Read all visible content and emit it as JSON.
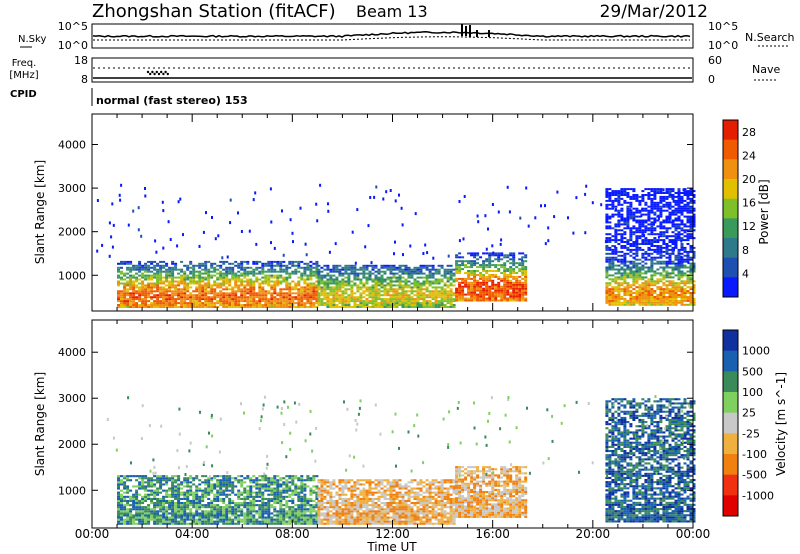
{
  "header": {
    "station": "Zhongshan Station (fitACF)",
    "beam": "Beam 13",
    "date": "29/Mar/2012"
  },
  "left_labels": {
    "nsky": "N.Sky",
    "freq_line1": "Freq.",
    "freq_line2": "[MHz]",
    "cpid": "CPID"
  },
  "right_labels": {
    "nsearch": "N.Search",
    "nave": "Nave"
  },
  "cpid_text": "normal (fast stereo) 153",
  "noise_panel": {
    "left_ticks": [
      "10^5",
      "10^0"
    ],
    "right_ticks": [
      "10^5",
      "10^0"
    ]
  },
  "freq_panel": {
    "left_ticks": [
      "18",
      "8"
    ],
    "right_ticks": [
      "60",
      "0"
    ]
  },
  "colors": {
    "power": [
      "#0a1aff",
      "#1f4fb0",
      "#2f7a8a",
      "#3a9a5a",
      "#7fc02a",
      "#e0c000",
      "#f09010",
      "#f05a00",
      "#e61e00"
    ],
    "velocity": [
      "#e00000",
      "#f03010",
      "#f08010",
      "#f0b040",
      "#c8c8c8",
      "#80d060",
      "#3a8a5a",
      "#1a60b0",
      "#1030a0"
    ]
  },
  "chart_data": [
    {
      "type": "heatmap",
      "title": "",
      "xlabel": "",
      "ylabel": "Slant Range [km]",
      "x_ticks": [
        "00:00",
        "04:00",
        "08:00",
        "12:00",
        "16:00",
        "20:00",
        "00:00"
      ],
      "y_ticks": [
        "1000",
        "2000",
        "3000",
        "4000"
      ],
      "ylim": [
        180,
        4700
      ],
      "colorbar_label": "Power [dB]",
      "colorbar_ticks": [
        "4",
        "8",
        "12",
        "16",
        "20",
        "24",
        "28"
      ],
      "colorbar_range": [
        0,
        30
      ],
      "bands": [
        {
          "x_start": 1,
          "x_end": 9,
          "range_start": 250,
          "range_end": 1300,
          "peak": 24
        },
        {
          "x_start": 9,
          "x_end": 14.5,
          "range_start": 250,
          "range_end": 1200,
          "peak": 18
        },
        {
          "x_start": 14.5,
          "x_end": 17.3,
          "range_start": 400,
          "range_end": 1500,
          "peak": 26
        },
        {
          "x_start": 20.5,
          "x_end": 24,
          "range_start": 300,
          "range_end": 3000,
          "peak": 22
        }
      ]
    },
    {
      "type": "heatmap",
      "title": "",
      "xlabel": "Time UT",
      "ylabel": "Slant Range [km]",
      "x_ticks": [
        "00:00",
        "04:00",
        "08:00",
        "12:00",
        "16:00",
        "20:00",
        "00:00"
      ],
      "y_ticks": [
        "1000",
        "2000",
        "3000",
        "4000"
      ],
      "ylim": [
        180,
        4700
      ],
      "colorbar_label": "Velocity [m s^-1]",
      "colorbar_ticks": [
        "1000",
        "500",
        "100",
        "25",
        "-25",
        "-100",
        "-500",
        "-1000"
      ],
      "bands": [
        {
          "x_start": 1,
          "x_end": 9,
          "range_start": 250,
          "range_end": 1300,
          "velocity": 100
        },
        {
          "x_start": 9,
          "x_end": 14.5,
          "range_start": 250,
          "range_end": 1200,
          "velocity": -100
        },
        {
          "x_start": 14.5,
          "x_end": 17.3,
          "range_start": 400,
          "range_end": 1500,
          "velocity": -100
        },
        {
          "x_start": 20.5,
          "x_end": 24,
          "range_start": 300,
          "range_end": 3000,
          "velocity": 500
        }
      ]
    }
  ]
}
